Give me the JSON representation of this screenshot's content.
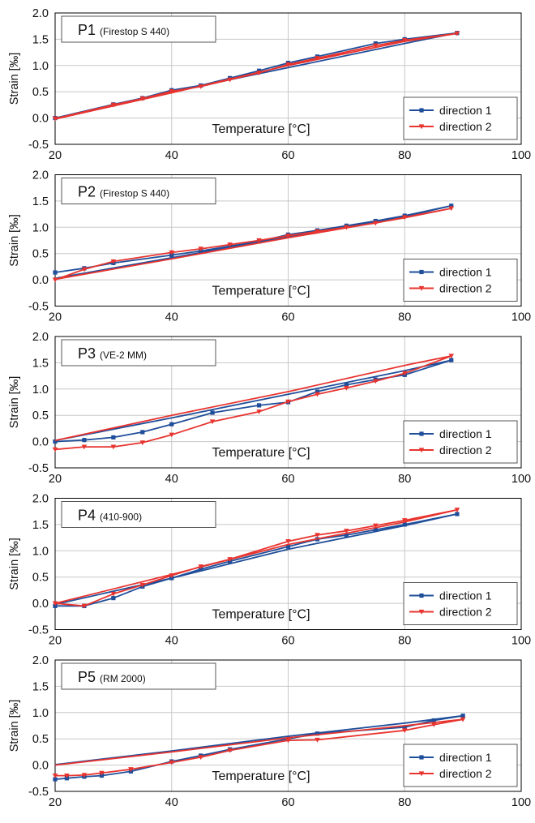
{
  "chart_data": [
    {
      "type": "line",
      "title": "P1",
      "subtitle": "(Firestop S 440)",
      "xlabel": "Temperature [°C]",
      "ylabel": "Strain [‰]",
      "xlim": [
        20,
        100
      ],
      "ylim": [
        -0.5,
        2.0
      ],
      "xticks": [
        "20",
        "40",
        "60",
        "80",
        "100"
      ],
      "yticks": [
        "-0.5",
        "0.0",
        "0.5",
        "1.0",
        "1.5",
        "2.0"
      ],
      "grid": true,
      "legend": "bottom-right",
      "series": [
        {
          "name": "direction 1",
          "color": "#1f4e9a",
          "marker": "square",
          "points": [
            [
              20,
              0.0
            ],
            [
              30,
              0.26
            ],
            [
              35,
              0.38
            ],
            [
              40,
              0.53
            ],
            [
              45,
              0.62
            ],
            [
              50,
              0.76
            ],
            [
              55,
              0.9
            ],
            [
              60,
              1.05
            ],
            [
              65,
              1.17
            ],
            [
              75,
              1.42
            ],
            [
              80,
              1.5
            ],
            [
              89,
              1.62
            ],
            [
              80,
              1.42
            ],
            [
              60,
              0.96
            ],
            [
              40,
              0.5
            ],
            [
              20,
              -0.01
            ]
          ]
        },
        {
          "name": "direction 2",
          "color": "#e8342f",
          "marker": "triangle-down",
          "points": [
            [
              20,
              -0.01
            ],
            [
              30,
              0.25
            ],
            [
              35,
              0.37
            ],
            [
              40,
              0.51
            ],
            [
              45,
              0.6
            ],
            [
              50,
              0.73
            ],
            [
              55,
              0.86
            ],
            [
              60,
              1.02
            ],
            [
              65,
              1.14
            ],
            [
              75,
              1.38
            ],
            [
              80,
              1.48
            ],
            [
              89,
              1.61
            ],
            [
              80,
              1.46
            ],
            [
              60,
              1.0
            ],
            [
              40,
              0.48
            ],
            [
              20,
              -0.02
            ]
          ]
        }
      ]
    },
    {
      "type": "line",
      "title": "P2",
      "subtitle": "(Firestop S 440)",
      "xlabel": "Temperature [°C]",
      "ylabel": "Strain [‰]",
      "xlim": [
        20,
        100
      ],
      "ylim": [
        -0.5,
        2.0
      ],
      "xticks": [
        "20",
        "40",
        "60",
        "80",
        "100"
      ],
      "yticks": [
        "-0.5",
        "0.0",
        "0.5",
        "1.0",
        "1.5",
        "2.0"
      ],
      "grid": true,
      "legend": "bottom-right",
      "series": [
        {
          "name": "direction 1",
          "color": "#1f4e9a",
          "marker": "square",
          "points": [
            [
              20,
              0.14
            ],
            [
              25,
              0.22
            ],
            [
              30,
              0.32
            ],
            [
              40,
              0.47
            ],
            [
              45,
              0.55
            ],
            [
              50,
              0.64
            ],
            [
              55,
              0.73
            ],
            [
              60,
              0.86
            ],
            [
              65,
              0.94
            ],
            [
              70,
              1.03
            ],
            [
              75,
              1.12
            ],
            [
              80,
              1.22
            ],
            [
              88,
              1.41
            ],
            [
              80,
              1.2
            ],
            [
              60,
              0.82
            ],
            [
              40,
              0.42
            ],
            [
              20,
              0.03
            ]
          ]
        },
        {
          "name": "direction 2",
          "color": "#e8342f",
          "marker": "triangle-down",
          "points": [
            [
              20,
              0.0
            ],
            [
              25,
              0.2
            ],
            [
              30,
              0.35
            ],
            [
              40,
              0.52
            ],
            [
              45,
              0.59
            ],
            [
              50,
              0.67
            ],
            [
              55,
              0.75
            ],
            [
              60,
              0.84
            ],
            [
              65,
              0.92
            ],
            [
              70,
              1.0
            ],
            [
              75,
              1.08
            ],
            [
              80,
              1.19
            ],
            [
              88,
              1.36
            ],
            [
              80,
              1.18
            ],
            [
              60,
              0.8
            ],
            [
              40,
              0.4
            ],
            [
              20,
              0.01
            ]
          ]
        }
      ]
    },
    {
      "type": "line",
      "title": "P3",
      "subtitle": "(VE-2 MM)",
      "xlabel": "Temperature [°C]",
      "ylabel": "Strain [‰]",
      "xlim": [
        20,
        100
      ],
      "ylim": [
        -0.5,
        2.0
      ],
      "xticks": [
        "20",
        "40",
        "60",
        "80",
        "100"
      ],
      "yticks": [
        "-0.5",
        "0.0",
        "0.5",
        "1.0",
        "1.5",
        "2.0"
      ],
      "grid": true,
      "legend": "bottom-right",
      "series": [
        {
          "name": "direction 1",
          "color": "#1f4e9a",
          "marker": "square",
          "points": [
            [
              20,
              0.0
            ],
            [
              25,
              0.03
            ],
            [
              30,
              0.08
            ],
            [
              35,
              0.18
            ],
            [
              40,
              0.33
            ],
            [
              47,
              0.55
            ],
            [
              55,
              0.69
            ],
            [
              60,
              0.75
            ],
            [
              65,
              0.95
            ],
            [
              70,
              1.08
            ],
            [
              75,
              1.18
            ],
            [
              80,
              1.27
            ],
            [
              88,
              1.55
            ],
            [
              80,
              1.35
            ],
            [
              60,
              0.9
            ],
            [
              40,
              0.45
            ],
            [
              20,
              0.02
            ]
          ]
        },
        {
          "name": "direction 2",
          "color": "#e8342f",
          "marker": "triangle-down",
          "points": [
            [
              20,
              -0.15
            ],
            [
              25,
              -0.1
            ],
            [
              30,
              -0.1
            ],
            [
              35,
              -0.02
            ],
            [
              40,
              0.13
            ],
            [
              47,
              0.38
            ],
            [
              55,
              0.57
            ],
            [
              60,
              0.76
            ],
            [
              65,
              0.9
            ],
            [
              70,
              1.02
            ],
            [
              75,
              1.15
            ],
            [
              80,
              1.3
            ],
            [
              88,
              1.63
            ],
            [
              80,
              1.45
            ],
            [
              60,
              0.95
            ],
            [
              40,
              0.5
            ],
            [
              20,
              0.02
            ]
          ]
        }
      ]
    },
    {
      "type": "line",
      "title": "P4",
      "subtitle": "(410-900)",
      "xlabel": "Temperature [°C]",
      "ylabel": "Strain [‰]",
      "xlim": [
        20,
        100
      ],
      "ylim": [
        -0.5,
        2.0
      ],
      "xticks": [
        "20",
        "40",
        "60",
        "80",
        "100"
      ],
      "yticks": [
        "-0.5",
        "0.0",
        "0.5",
        "1.0",
        "1.5",
        "2.0"
      ],
      "grid": true,
      "legend": "bottom-right",
      "series": [
        {
          "name": "direction 1",
          "color": "#1f4e9a",
          "marker": "square",
          "points": [
            [
              20,
              -0.05
            ],
            [
              25,
              -0.05
            ],
            [
              30,
              0.1
            ],
            [
              35,
              0.32
            ],
            [
              40,
              0.48
            ],
            [
              45,
              0.65
            ],
            [
              50,
              0.8
            ],
            [
              60,
              1.08
            ],
            [
              65,
              1.22
            ],
            [
              70,
              1.3
            ],
            [
              75,
              1.4
            ],
            [
              80,
              1.5
            ],
            [
              89,
              1.7
            ],
            [
              80,
              1.48
            ],
            [
              60,
              1.03
            ],
            [
              40,
              0.48
            ],
            [
              20,
              -0.02
            ]
          ]
        },
        {
          "name": "direction 2",
          "color": "#e8342f",
          "marker": "triangle-down",
          "points": [
            [
              20,
              0.0
            ],
            [
              25,
              -0.05
            ],
            [
              30,
              0.18
            ],
            [
              35,
              0.35
            ],
            [
              40,
              0.53
            ],
            [
              45,
              0.7
            ],
            [
              50,
              0.84
            ],
            [
              60,
              1.18
            ],
            [
              65,
              1.3
            ],
            [
              70,
              1.38
            ],
            [
              75,
              1.48
            ],
            [
              80,
              1.58
            ],
            [
              89,
              1.78
            ],
            [
              80,
              1.55
            ],
            [
              60,
              1.12
            ],
            [
              40,
              0.55
            ],
            [
              20,
              0.0
            ]
          ]
        }
      ]
    },
    {
      "type": "line",
      "title": "P5",
      "subtitle": "(RM 2000)",
      "xlabel": "Temperature [°C]",
      "ylabel": "Strain [‰]",
      "xlim": [
        20,
        100
      ],
      "ylim": [
        -0.5,
        2.0
      ],
      "xticks": [
        "20",
        "40",
        "60",
        "80",
        "100"
      ],
      "yticks": [
        "-0.5",
        "0.0",
        "0.5",
        "1.0",
        "1.5",
        "2.0"
      ],
      "grid": true,
      "legend": "bottom-right",
      "series": [
        {
          "name": "direction 1",
          "color": "#1f4e9a",
          "marker": "square",
          "points": [
            [
              20,
              -0.27
            ],
            [
              22,
              -0.25
            ],
            [
              25,
              -0.22
            ],
            [
              28,
              -0.2
            ],
            [
              33,
              -0.12
            ],
            [
              40,
              0.07
            ],
            [
              45,
              0.18
            ],
            [
              50,
              0.3
            ],
            [
              60,
              0.5
            ],
            [
              65,
              0.6
            ],
            [
              80,
              0.72
            ],
            [
              85,
              0.85
            ],
            [
              90,
              0.94
            ],
            [
              80,
              0.8
            ],
            [
              60,
              0.55
            ],
            [
              40,
              0.27
            ],
            [
              20,
              0.01
            ]
          ]
        },
        {
          "name": "direction 2",
          "color": "#e8342f",
          "marker": "triangle-down",
          "points": [
            [
              20,
              -0.2
            ],
            [
              22,
              -0.2
            ],
            [
              25,
              -0.19
            ],
            [
              28,
              -0.15
            ],
            [
              33,
              -0.08
            ],
            [
              40,
              0.05
            ],
            [
              45,
              0.15
            ],
            [
              50,
              0.28
            ],
            [
              60,
              0.47
            ],
            [
              65,
              0.48
            ],
            [
              80,
              0.66
            ],
            [
              85,
              0.77
            ],
            [
              90,
              0.87
            ],
            [
              80,
              0.75
            ],
            [
              60,
              0.52
            ],
            [
              40,
              0.25
            ],
            [
              20,
              0.0
            ]
          ]
        }
      ]
    }
  ]
}
